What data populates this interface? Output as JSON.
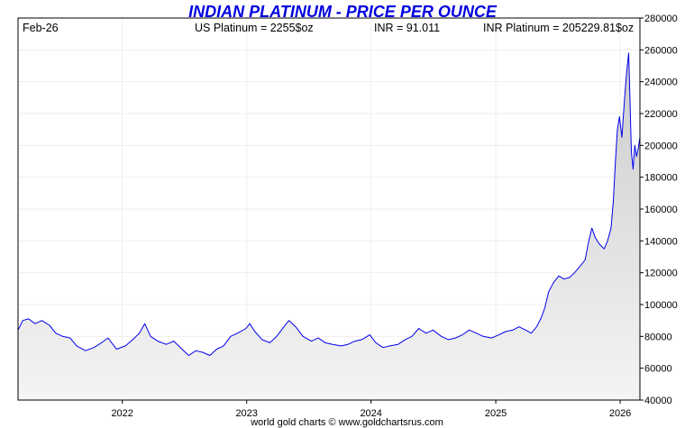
{
  "chart_data": {
    "type": "area",
    "title": "INDIAN PLATINUM - PRICE PER OUNCE",
    "header": {
      "date": "Feb-26",
      "us_price": "US Platinum = 2255$oz",
      "fx": "INR = 91.011",
      "local_price": "INR Platinum = 205229.81$oz"
    },
    "footer": "world gold charts © www.goldchartsrus.com",
    "x_range": [
      "2021-03-01",
      "2026-02-28"
    ],
    "ylim": [
      40000,
      280000
    ],
    "y_ticks": [
      40000,
      60000,
      80000,
      100000,
      120000,
      140000,
      160000,
      180000,
      200000,
      220000,
      240000,
      260000,
      280000
    ],
    "y_tick_labels": [
      "40000",
      "60000",
      "80000",
      "100000",
      "120000",
      "140000",
      "160000",
      "180000",
      "200000",
      "220000",
      "240000",
      "260000",
      "280000"
    ],
    "x_ticks": [
      "2022",
      "2023",
      "2024",
      "2025",
      "2026"
    ],
    "grid": true,
    "line_color": "#0000ee",
    "fill_top_color": "#cccccc",
    "fill_bottom_color": "#f4f4f4",
    "series": [
      {
        "points": [
          [
            "2021-03-01",
            84000
          ],
          [
            "2021-03-15",
            90000
          ],
          [
            "2021-04-01",
            91000
          ],
          [
            "2021-04-20",
            88000
          ],
          [
            "2021-05-10",
            90000
          ],
          [
            "2021-06-01",
            87000
          ],
          [
            "2021-06-20",
            82000
          ],
          [
            "2021-07-10",
            80000
          ],
          [
            "2021-08-01",
            79000
          ],
          [
            "2021-08-20",
            74000
          ],
          [
            "2021-09-15",
            71000
          ],
          [
            "2021-10-10",
            73000
          ],
          [
            "2021-11-01",
            76000
          ],
          [
            "2021-11-20",
            79000
          ],
          [
            "2021-12-15",
            72000
          ],
          [
            "2022-01-10",
            74000
          ],
          [
            "2022-02-01",
            78000
          ],
          [
            "2022-02-20",
            82000
          ],
          [
            "2022-03-08",
            88000
          ],
          [
            "2022-03-25",
            80000
          ],
          [
            "2022-04-15",
            77000
          ],
          [
            "2022-05-10",
            75000
          ],
          [
            "2022-06-01",
            77000
          ],
          [
            "2022-06-25",
            72000
          ],
          [
            "2022-07-15",
            68000
          ],
          [
            "2022-08-05",
            71000
          ],
          [
            "2022-08-25",
            70000
          ],
          [
            "2022-09-15",
            68000
          ],
          [
            "2022-10-05",
            72000
          ],
          [
            "2022-10-25",
            74000
          ],
          [
            "2022-11-15",
            80000
          ],
          [
            "2022-12-05",
            82000
          ],
          [
            "2022-12-30",
            85000
          ],
          [
            "2023-01-10",
            88000
          ],
          [
            "2023-01-25",
            83000
          ],
          [
            "2023-02-15",
            78000
          ],
          [
            "2023-03-10",
            76000
          ],
          [
            "2023-03-30",
            80000
          ],
          [
            "2023-04-20",
            86000
          ],
          [
            "2023-05-05",
            90000
          ],
          [
            "2023-05-25",
            86000
          ],
          [
            "2023-06-15",
            80000
          ],
          [
            "2023-07-10",
            77000
          ],
          [
            "2023-07-30",
            79000
          ],
          [
            "2023-08-20",
            76000
          ],
          [
            "2023-09-10",
            75000
          ],
          [
            "2023-10-05",
            74000
          ],
          [
            "2023-10-25",
            75000
          ],
          [
            "2023-11-15",
            77000
          ],
          [
            "2023-12-05",
            78000
          ],
          [
            "2023-12-28",
            81000
          ],
          [
            "2024-01-15",
            76000
          ],
          [
            "2024-02-05",
            73000
          ],
          [
            "2024-02-25",
            74000
          ],
          [
            "2024-03-20",
            75000
          ],
          [
            "2024-04-10",
            78000
          ],
          [
            "2024-04-30",
            80000
          ],
          [
            "2024-05-20",
            85000
          ],
          [
            "2024-06-10",
            82000
          ],
          [
            "2024-07-01",
            84000
          ],
          [
            "2024-07-25",
            80000
          ],
          [
            "2024-08-15",
            78000
          ],
          [
            "2024-09-05",
            79000
          ],
          [
            "2024-09-25",
            81000
          ],
          [
            "2024-10-15",
            84000
          ],
          [
            "2024-11-05",
            82000
          ],
          [
            "2024-11-25",
            80000
          ],
          [
            "2024-12-20",
            79000
          ],
          [
            "2025-01-10",
            81000
          ],
          [
            "2025-01-30",
            83000
          ],
          [
            "2025-02-20",
            84000
          ],
          [
            "2025-03-10",
            86000
          ],
          [
            "2025-03-30",
            84000
          ],
          [
            "2025-04-15",
            82000
          ],
          [
            "2025-05-01",
            86000
          ],
          [
            "2025-05-15",
            92000
          ],
          [
            "2025-05-25",
            98000
          ],
          [
            "2025-06-05",
            108000
          ],
          [
            "2025-06-20",
            114000
          ],
          [
            "2025-07-05",
            118000
          ],
          [
            "2025-07-20",
            116000
          ],
          [
            "2025-08-05",
            117000
          ],
          [
            "2025-08-20",
            120000
          ],
          [
            "2025-09-05",
            124000
          ],
          [
            "2025-09-20",
            128000
          ],
          [
            "2025-10-01",
            140000
          ],
          [
            "2025-10-10",
            148000
          ],
          [
            "2025-10-20",
            142000
          ],
          [
            "2025-11-01",
            138000
          ],
          [
            "2025-11-15",
            135000
          ],
          [
            "2025-11-25",
            140000
          ],
          [
            "2025-12-05",
            148000
          ],
          [
            "2025-12-12",
            165000
          ],
          [
            "2025-12-18",
            190000
          ],
          [
            "2025-12-24",
            210000
          ],
          [
            "2025-12-30",
            218000
          ],
          [
            "2026-01-06",
            205000
          ],
          [
            "2026-01-14",
            230000
          ],
          [
            "2026-01-20",
            246000
          ],
          [
            "2026-01-26",
            258000
          ],
          [
            "2026-01-30",
            228000
          ],
          [
            "2026-02-03",
            196000
          ],
          [
            "2026-02-08",
            185000
          ],
          [
            "2026-02-13",
            200000
          ],
          [
            "2026-02-18",
            193000
          ],
          [
            "2026-02-23",
            198000
          ],
          [
            "2026-02-28",
            205230
          ]
        ]
      }
    ]
  }
}
